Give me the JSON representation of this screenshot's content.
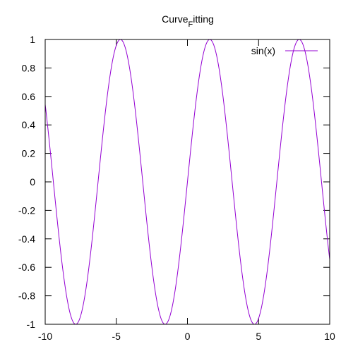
{
  "chart_data": {
    "type": "line",
    "title": {
      "main": "Curve",
      "subscript": "F",
      "rest": "itting"
    },
    "xlabel": "",
    "ylabel": "",
    "xlim": [
      -10,
      10
    ],
    "ylim": [
      -1,
      1
    ],
    "x_ticks": [
      {
        "value": -10,
        "label": "-10"
      },
      {
        "value": -5,
        "label": "-5"
      },
      {
        "value": 0,
        "label": "0"
      },
      {
        "value": 5,
        "label": "5"
      },
      {
        "value": 10,
        "label": "10"
      }
    ],
    "y_ticks": [
      {
        "value": 1,
        "label": "1"
      },
      {
        "value": 0.8,
        "label": "0.8"
      },
      {
        "value": 0.6,
        "label": "0.6"
      },
      {
        "value": 0.4,
        "label": "0.4"
      },
      {
        "value": 0.2,
        "label": "0.2"
      },
      {
        "value": 0,
        "label": "0"
      },
      {
        "value": -0.2,
        "label": "-0.2"
      },
      {
        "value": -0.4,
        "label": "-0.4"
      },
      {
        "value": -0.6,
        "label": "-0.6"
      },
      {
        "value": -0.8,
        "label": "-0.8"
      },
      {
        "value": -1,
        "label": "-1"
      }
    ],
    "grid": false,
    "legend_position": "top-right",
    "series": [
      {
        "name": "sin(x)",
        "color": "#9400d3",
        "function": "sin(x)",
        "x": [
          -10,
          -9.5,
          -9,
          -8.5,
          -8,
          -7.5,
          -7,
          -6.5,
          -6,
          -5.5,
          -5,
          -4.5,
          -4,
          -3.5,
          -3,
          -2.5,
          -2,
          -1.5,
          -1,
          -0.5,
          0,
          0.5,
          1,
          1.5,
          2,
          2.5,
          3,
          3.5,
          4,
          4.5,
          5,
          5.5,
          6,
          6.5,
          7,
          7.5,
          8,
          8.5,
          9,
          9.5,
          10
        ],
        "y": [
          0.544,
          0.075,
          -0.412,
          -0.798,
          -0.989,
          -0.938,
          -0.657,
          -0.215,
          0.279,
          0.706,
          0.959,
          0.978,
          0.757,
          0.351,
          -0.141,
          -0.598,
          -0.909,
          -0.997,
          -0.841,
          -0.479,
          0,
          0.479,
          0.841,
          0.997,
          0.909,
          0.598,
          0.141,
          -0.351,
          -0.757,
          -0.978,
          -0.959,
          -0.706,
          -0.279,
          0.215,
          0.657,
          0.938,
          0.989,
          0.798,
          0.412,
          -0.075,
          -0.544
        ]
      }
    ]
  }
}
